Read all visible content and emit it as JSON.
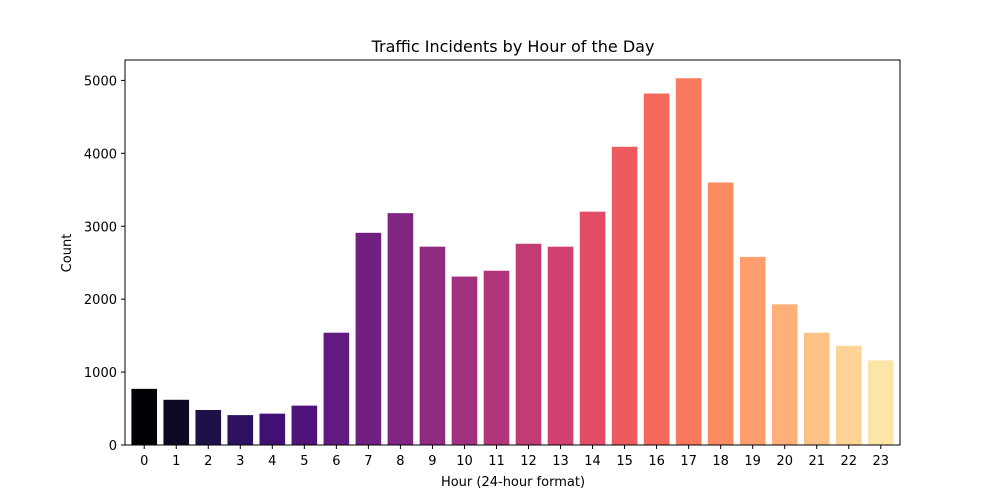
{
  "chart_data": {
    "type": "bar",
    "title": "Traffic Incidents by Hour of the Day",
    "xlabel": "Hour (24-hour format)",
    "ylabel": "Count",
    "categories": [
      "0",
      "1",
      "2",
      "3",
      "4",
      "5",
      "6",
      "7",
      "8",
      "9",
      "10",
      "11",
      "12",
      "13",
      "14",
      "15",
      "16",
      "17",
      "18",
      "19",
      "20",
      "21",
      "22",
      "23"
    ],
    "values": [
      770,
      620,
      480,
      410,
      430,
      540,
      1540,
      2910,
      3180,
      2720,
      2310,
      2390,
      2760,
      2720,
      3200,
      4090,
      4820,
      5030,
      3600,
      2580,
      1930,
      1540,
      1360,
      1160
    ],
    "ylim": [
      0,
      5280
    ],
    "yticks": [
      0,
      1000,
      2000,
      3000,
      4000,
      5000
    ],
    "grid": false,
    "legend": "none",
    "colors": [
      "#000004",
      "#0b0924",
      "#1d1147",
      "#2e1260",
      "#420f75",
      "#51127c",
      "#601a80",
      "#711f81",
      "#802582",
      "#912b81",
      "#a1307e",
      "#b2357b",
      "#c23b75",
      "#d2416f",
      "#e14d66",
      "#ee5b5e",
      "#f4695c",
      "#f8795d",
      "#fb8b61",
      "#fd9e6c",
      "#feb078",
      "#fec287",
      "#fed395",
      "#fde5a7"
    ]
  }
}
